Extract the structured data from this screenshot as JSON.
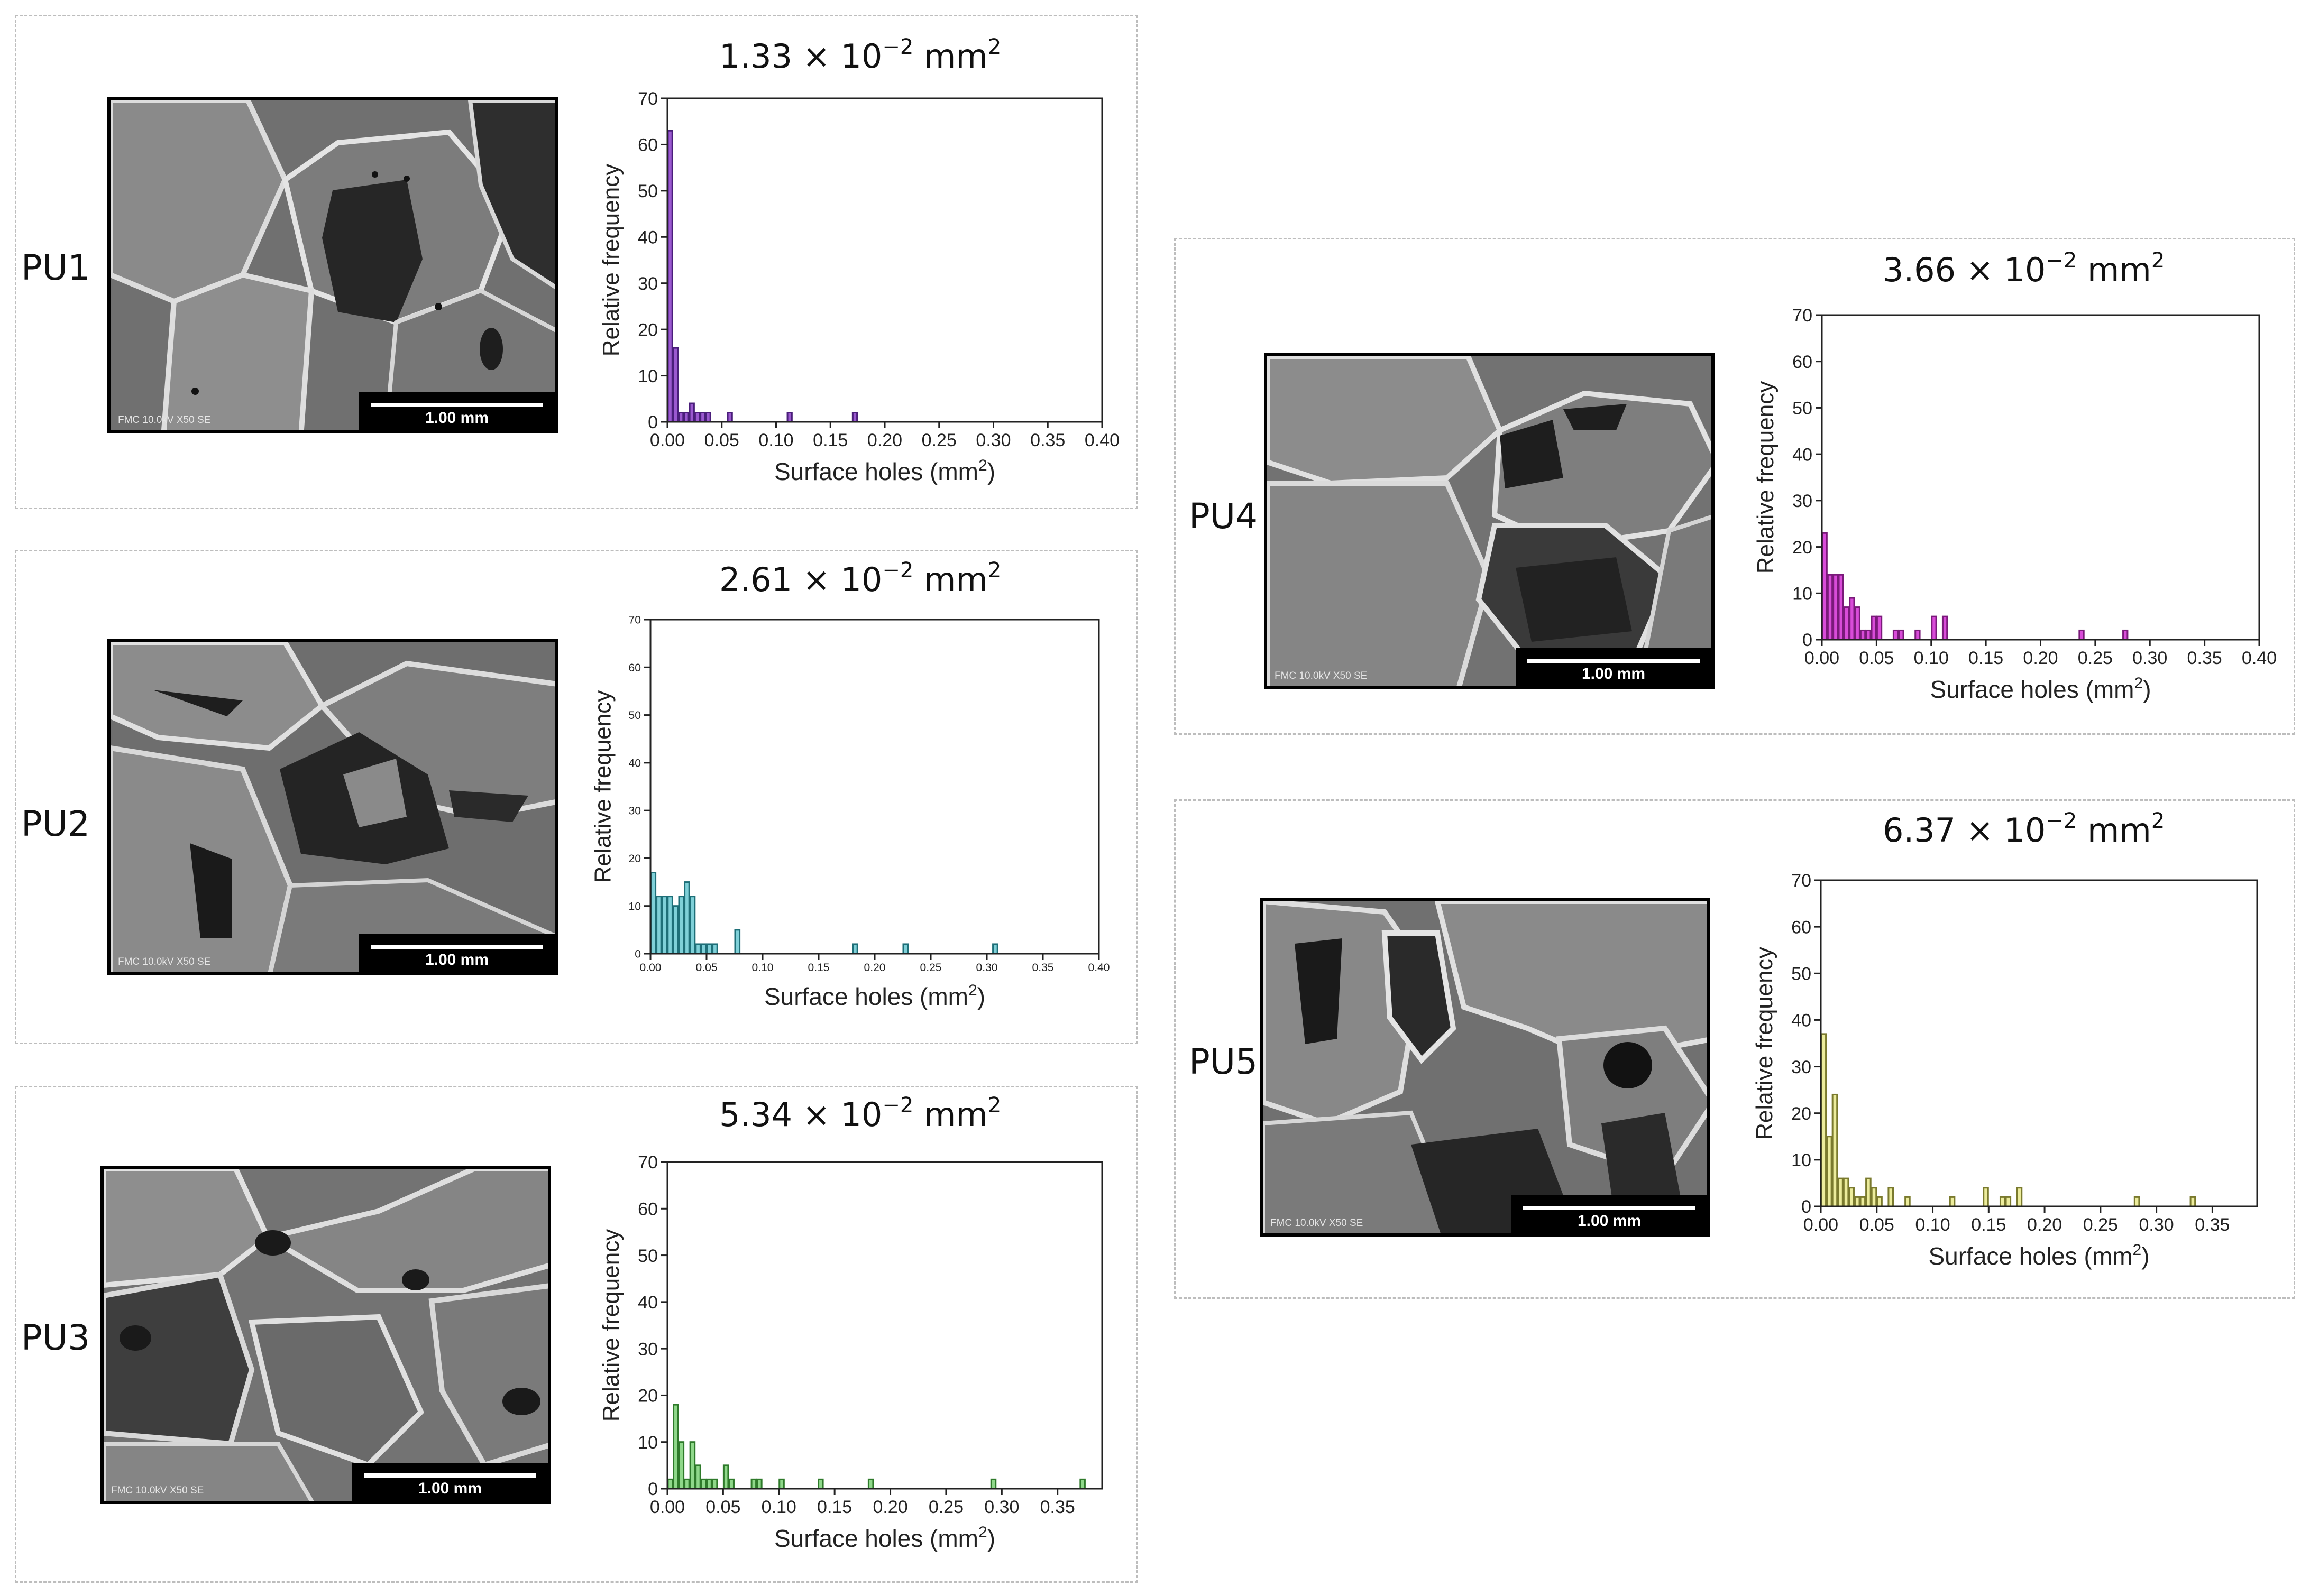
{
  "figure": {
    "panels": [
      {
        "id": "PU1",
        "label": "PU1",
        "scale_bar": "1.00 mm",
        "sem_info": "FMC 10.0kV X50 SE",
        "chart_data": {
          "type": "bar",
          "title_mantissa": "1.33",
          "title_times": "×",
          "title_base": "10",
          "title_exp": "−2",
          "title_unit": "mm",
          "title": "1.33 × 10−2 mm2",
          "xlabel": "Surface holes (mm2)",
          "xlabel_main": "Surface holes (mm",
          "xlabel_sup": "2",
          "xlabel_close": ")",
          "ylabel": "Relative frequency",
          "xlim": [
            0,
            0.4
          ],
          "ylim": [
            0,
            70
          ],
          "bin_width": 0.005,
          "xticks": [
            "0.00",
            "0.05",
            "0.10",
            "0.15",
            "0.20",
            "0.25",
            "0.30",
            "0.35",
            "0.40"
          ],
          "yticks": [
            "0",
            "10",
            "20",
            "30",
            "40",
            "50",
            "60",
            "70"
          ],
          "color": "#9b59d0",
          "edge": "#4a1e7a",
          "x": [
            0.0025,
            0.0075,
            0.0125,
            0.0175,
            0.0225,
            0.0275,
            0.0325,
            0.0375,
            0.0575,
            0.1125,
            0.1725
          ],
          "values": [
            63,
            16,
            2,
            2,
            4,
            2,
            2,
            2,
            2,
            2,
            2
          ]
        }
      },
      {
        "id": "PU2",
        "label": "PU2",
        "scale_bar": "1.00 mm",
        "sem_info": "FMC 10.0kV X50 SE",
        "chart_data": {
          "type": "bar",
          "title_mantissa": "2.61",
          "title_times": "×",
          "title_base": "10",
          "title_exp": "−2",
          "title_unit": "mm",
          "title": "2.61 × 10−2 mm2",
          "xlabel": "Surface holes (mm2)",
          "xlabel_main": "Surface holes (mm",
          "xlabel_sup": "2",
          "xlabel_close": ")",
          "ylabel": "Relative frequency",
          "xlim": [
            0,
            0.4
          ],
          "ylim": [
            0,
            70
          ],
          "bin_width": 0.005,
          "xticks": [
            "0.00",
            "0.05",
            "0.10",
            "0.15",
            "0.20",
            "0.25",
            "0.30",
            "0.35",
            "0.40"
          ],
          "yticks": [
            "0",
            "10",
            "20",
            "30",
            "40",
            "50",
            "60",
            "70"
          ],
          "color": "#7fd0d8",
          "edge": "#1e6f78",
          "x": [
            0.0025,
            0.0075,
            0.0125,
            0.0175,
            0.0225,
            0.0275,
            0.0325,
            0.0375,
            0.0425,
            0.0475,
            0.0525,
            0.0575,
            0.0775,
            0.1825,
            0.2275,
            0.3075
          ],
          "values": [
            17,
            12,
            12,
            12,
            10,
            12,
            15,
            12,
            2,
            2,
            2,
            2,
            5,
            2,
            2,
            2
          ]
        }
      },
      {
        "id": "PU3",
        "label": "PU3",
        "scale_bar": "1.00 mm",
        "sem_info": "FMC 10.0kV X50 SE",
        "chart_data": {
          "type": "bar",
          "title_mantissa": "5.34",
          "title_times": "×",
          "title_base": "10",
          "title_exp": "−2",
          "title_unit": "mm",
          "title": "5.34 × 10−2 mm2",
          "xlabel": "Surface holes (mm2)",
          "xlabel_main": "Surface holes (mm",
          "xlabel_sup": "2",
          "xlabel_close": ")",
          "ylabel": "Relative frequency",
          "xlim": [
            0,
            0.39
          ],
          "ylim": [
            0,
            70
          ],
          "bin_width": 0.005,
          "xticks": [
            "0.00",
            "0.05",
            "0.10",
            "0.15",
            "0.20",
            "0.25",
            "0.30",
            "0.35"
          ],
          "yticks": [
            "0",
            "10",
            "20",
            "30",
            "40",
            "50",
            "60",
            "70"
          ],
          "color": "#8fd88a",
          "edge": "#2e7a2a",
          "x": [
            0.0025,
            0.0075,
            0.0125,
            0.0175,
            0.0225,
            0.0275,
            0.0325,
            0.0375,
            0.0425,
            0.0525,
            0.0575,
            0.0775,
            0.0825,
            0.1025,
            0.1375,
            0.1825,
            0.2925,
            0.3725
          ],
          "values": [
            2,
            18,
            10,
            2,
            10,
            5,
            2,
            2,
            2,
            5,
            2,
            2,
            2,
            2,
            2,
            2,
            2,
            2
          ]
        }
      },
      {
        "id": "PU4",
        "label": "PU4",
        "scale_bar": "1.00 mm",
        "sem_info": "FMC 10.0kV X50 SE",
        "chart_data": {
          "type": "bar",
          "title_mantissa": "3.66",
          "title_times": "×",
          "title_base": "10",
          "title_exp": "−2",
          "title_unit": "mm",
          "title": "3.66 × 10−2 mm2",
          "xlabel": "Surface holes (mm2)",
          "xlabel_main": "Surface holes (mm",
          "xlabel_sup": "2",
          "xlabel_close": ")",
          "ylabel": "Relative frequency",
          "xlim": [
            0,
            0.4
          ],
          "ylim": [
            0,
            70
          ],
          "bin_width": 0.005,
          "xticks": [
            "0.00",
            "0.05",
            "0.10",
            "0.15",
            "0.20",
            "0.25",
            "0.30",
            "0.35",
            "0.40"
          ],
          "yticks": [
            "0",
            "10",
            "20",
            "30",
            "40",
            "50",
            "60",
            "70"
          ],
          "color": "#d94cd9",
          "edge": "#7a1a7a",
          "x": [
            0.0025,
            0.0075,
            0.0125,
            0.0175,
            0.0225,
            0.0275,
            0.0325,
            0.0375,
            0.0425,
            0.0475,
            0.0525,
            0.0675,
            0.0725,
            0.0875,
            0.1025,
            0.1125,
            0.2375,
            0.2775
          ],
          "values": [
            23,
            14,
            14,
            14,
            7,
            9,
            7,
            2,
            2,
            5,
            5,
            2,
            2,
            2,
            5,
            5,
            2,
            2
          ]
        }
      },
      {
        "id": "PU5",
        "label": "PU5",
        "scale_bar": "1.00 mm",
        "sem_info": "FMC 10.0kV X50 SE",
        "chart_data": {
          "type": "bar",
          "title_mantissa": "6.37",
          "title_times": "×",
          "title_base": "10",
          "title_exp": "−2",
          "title_unit": "mm",
          "title": "6.37 × 10−2 mm2",
          "xlabel": "Surface holes (mm2)",
          "xlabel_main": "Surface holes (mm",
          "xlabel_sup": "2",
          "xlabel_close": ")",
          "ylabel": "Relative frequency",
          "xlim": [
            0,
            0.39
          ],
          "ylim": [
            0,
            70
          ],
          "bin_width": 0.005,
          "xticks": [
            "0.00",
            "0.05",
            "0.10",
            "0.15",
            "0.20",
            "0.25",
            "0.30",
            "0.35"
          ],
          "yticks": [
            "0",
            "10",
            "20",
            "30",
            "40",
            "50",
            "60",
            "70"
          ],
          "color": "#ecec9c",
          "edge": "#7a7a2e",
          "x": [
            0.0025,
            0.0075,
            0.0125,
            0.0175,
            0.0225,
            0.0275,
            0.0325,
            0.0375,
            0.0425,
            0.0475,
            0.0525,
            0.0625,
            0.0775,
            0.1175,
            0.1475,
            0.1625,
            0.1675,
            0.1775,
            0.2825,
            0.3325
          ],
          "values": [
            37,
            15,
            24,
            6,
            6,
            4,
            2,
            2,
            6,
            4,
            2,
            4,
            2,
            2,
            4,
            2,
            2,
            4,
            2,
            2
          ]
        }
      }
    ]
  }
}
